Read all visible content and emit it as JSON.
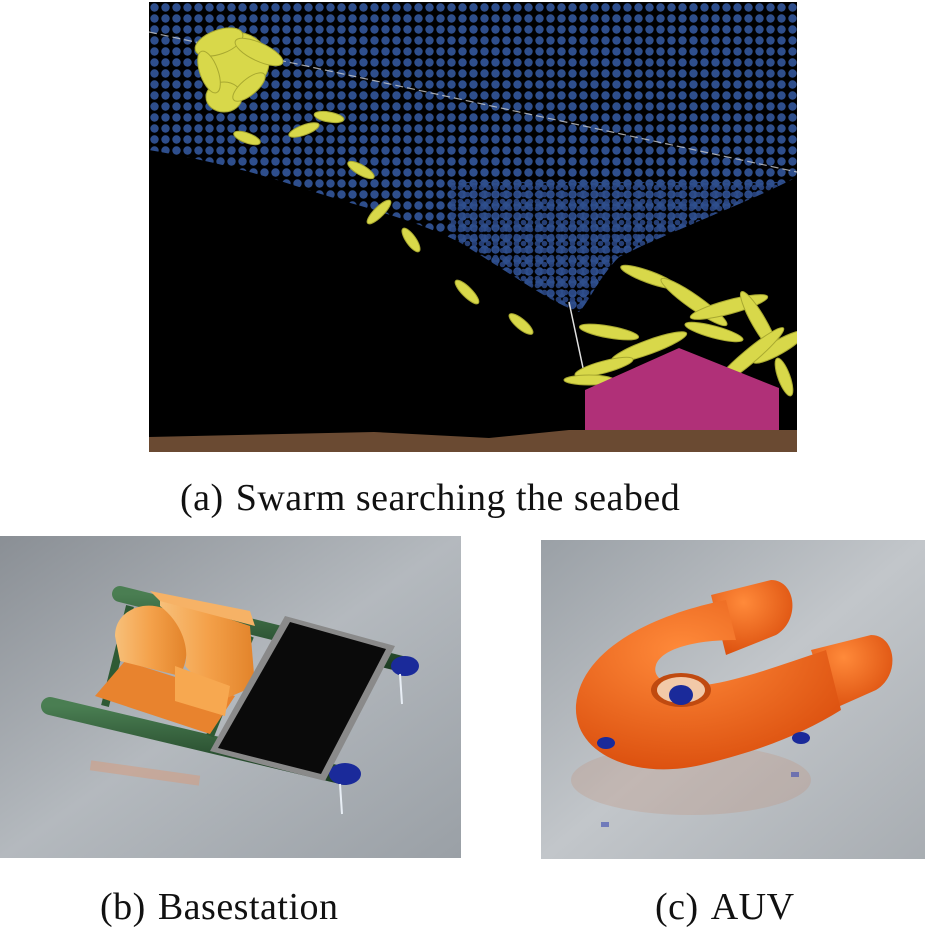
{
  "figure": {
    "panels": [
      {
        "id": "a",
        "tag": "(a)",
        "caption": "Swarm searching the seabed"
      },
      {
        "id": "b",
        "tag": "(b)",
        "caption": "Basestation"
      },
      {
        "id": "c",
        "tag": "(c)",
        "caption": "AUV"
      }
    ]
  },
  "colors": {
    "seabed_mesh": "#2e4e8c",
    "swarm_agents": "#d8d84a",
    "base_station_box": "#b03078",
    "ground": "#6a4a32",
    "float_orange": "#f08a2a",
    "auv_orange": "#f06418",
    "hull_green": "#2e5a34",
    "solar_panel": "#0a0a0a",
    "thruster_blue": "#1a2a9a"
  }
}
